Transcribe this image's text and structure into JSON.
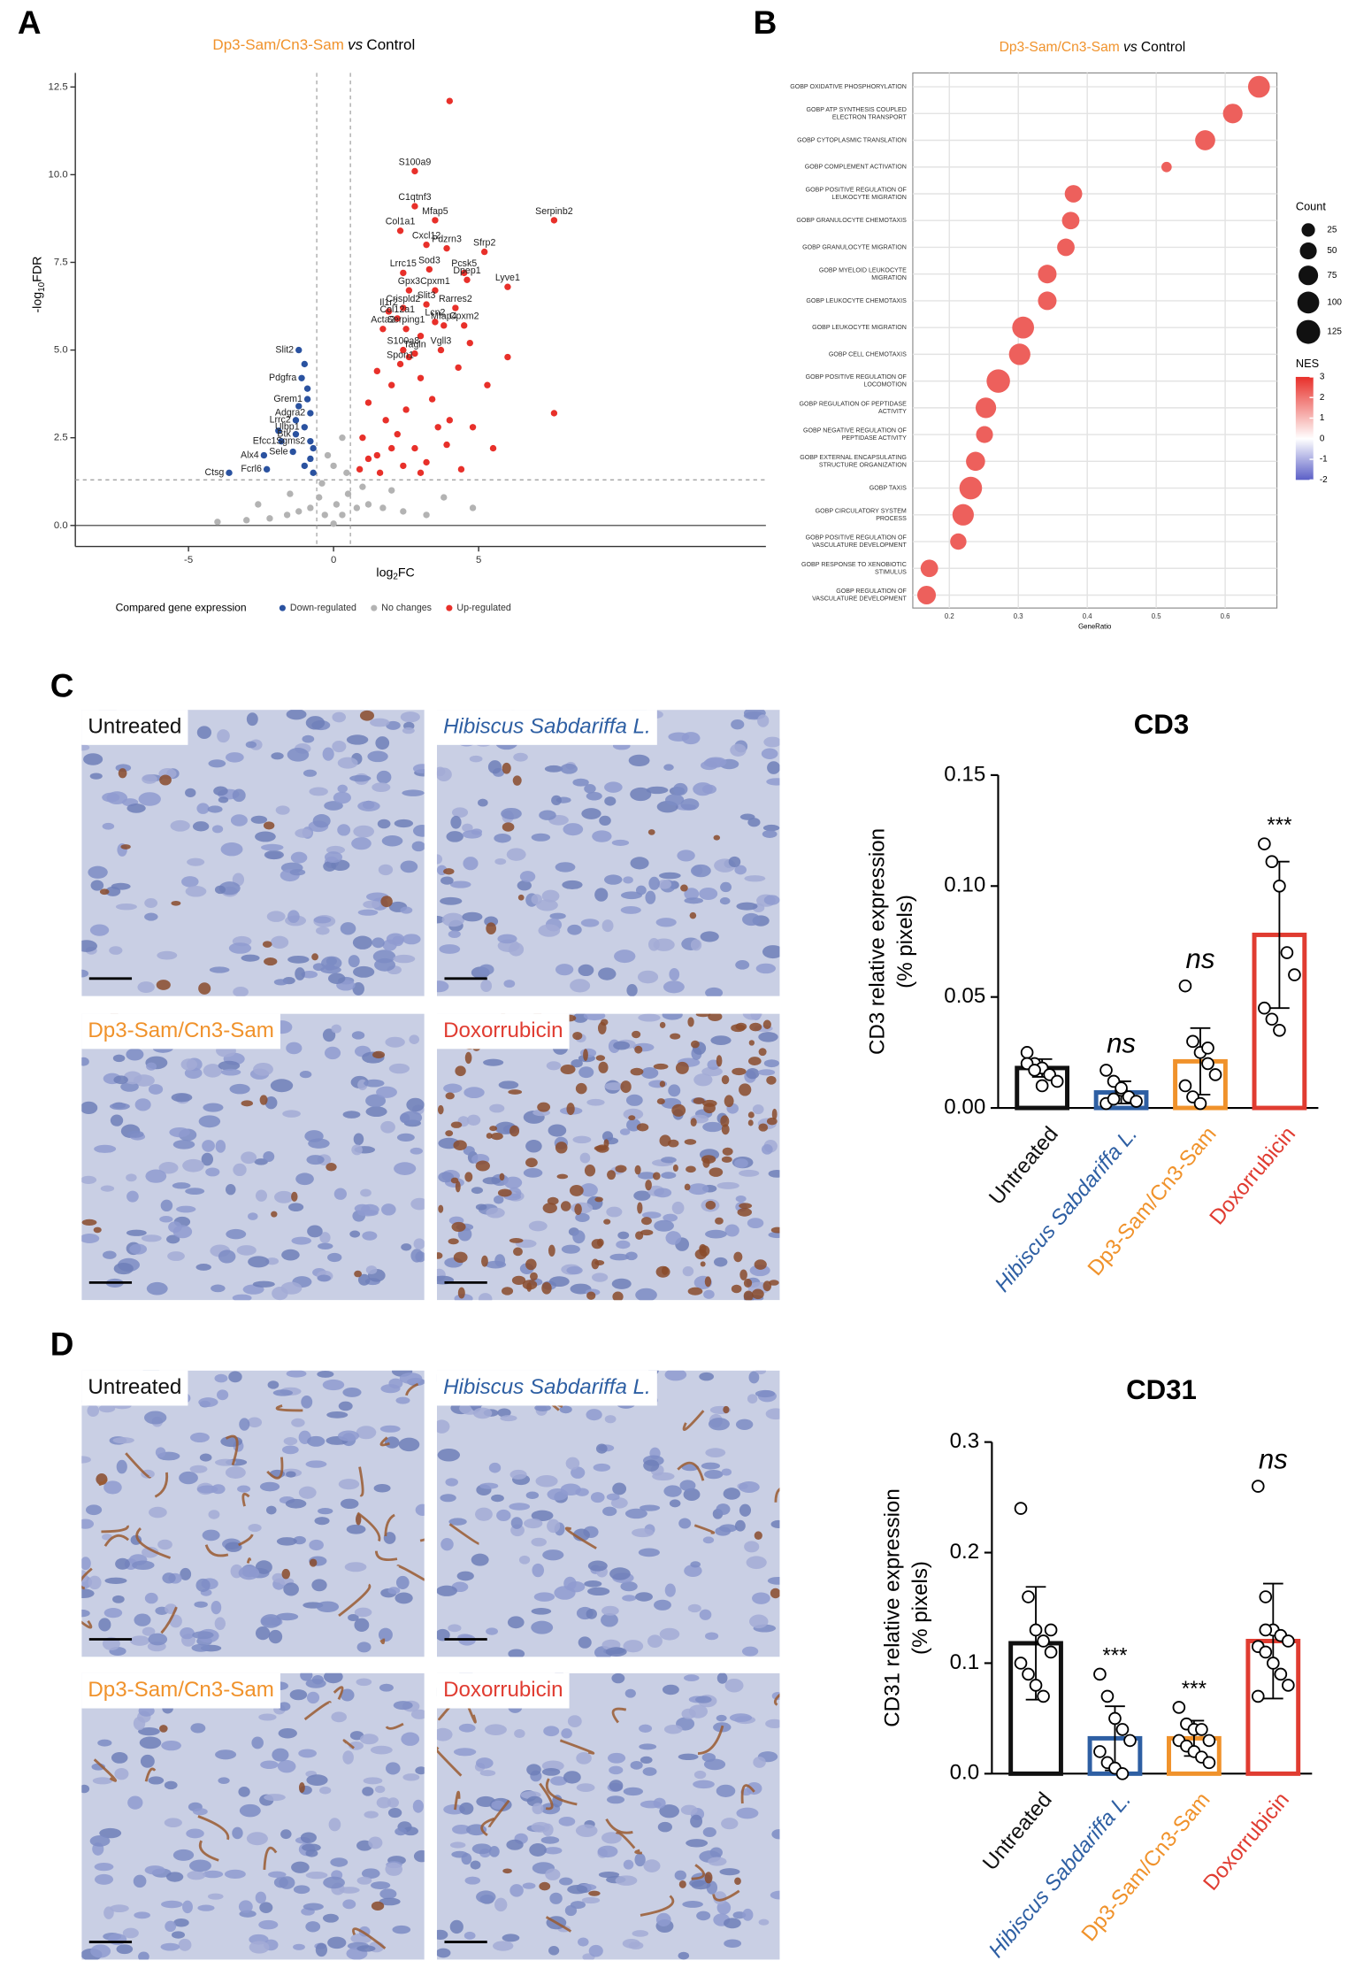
{
  "panel_labels": [
    "A",
    "B",
    "C",
    "D"
  ],
  "chart_data": [
    {
      "type": "scatter",
      "title": [
        "Dp3-Sam/Cn3-Sam",
        "vs",
        "Control"
      ],
      "xlabel": [
        "log",
        "2",
        "FC"
      ],
      "ylabel": [
        "-log",
        "10",
        "FDR"
      ],
      "xlim": [
        -8.9,
        14.9
      ],
      "ylim": [
        -0.6,
        12.9
      ],
      "xticks": [
        -5,
        0,
        5
      ],
      "yticks": [
        {
          "value": 0,
          "label": "0.0"
        },
        2.5,
        {
          "value": 5,
          "label": "5.0"
        },
        7.5,
        {
          "value": 10,
          "label": "10.0"
        },
        12.5
      ],
      "thresholds": {
        "x": [
          -0.58,
          0.58
        ],
        "y": 1.3
      },
      "legend_title": "Compared gene expression",
      "series": [
        {
          "name": "Down-regulated",
          "color": "#2a52a0",
          "x": [
            -1.2,
            -1.1,
            -0.9,
            -0.8,
            -1.3,
            -1.0,
            -1.3,
            -1.8,
            -0.8,
            -1.4,
            -2.4,
            -2.3,
            -3.6,
            -1.0,
            -0.9,
            -0.7,
            -0.8,
            -1.0,
            -0.7,
            -1.2,
            -1.9
          ],
          "y": [
            5.0,
            4.2,
            3.6,
            3.2,
            3.0,
            2.8,
            2.6,
            2.4,
            2.4,
            2.1,
            2.0,
            1.6,
            1.5,
            4.6,
            3.9,
            2.2,
            1.9,
            1.7,
            1.5,
            3.4,
            2.7
          ],
          "labels": [
            "Slit2",
            "Pdgfra",
            "Grem1",
            "Adgra2",
            "Lrrc2",
            "Ulbp1",
            "Btk",
            "Efcc1",
            "Sgms2",
            "Sele",
            "Alx4",
            "Fcrl6",
            "Ctsg",
            null,
            null,
            null,
            null,
            null,
            null,
            null,
            null
          ]
        },
        {
          "name": "No changes",
          "color": "#b3b3b3",
          "x": [
            0,
            -0.3,
            0.3,
            -0.5,
            0.5,
            -0.8,
            0.8,
            -1.2,
            1.2,
            -1.6,
            1.7,
            -2.2,
            2.4,
            -3.0,
            3.2,
            -0.4,
            0.45,
            -0.2,
            0.3,
            0.1,
            2.0,
            3.8,
            -1.5,
            -2.6,
            1.0,
            4.8,
            -4.0,
            0.0
          ],
          "y": [
            0.05,
            0.3,
            0.3,
            0.8,
            0.9,
            0.5,
            0.5,
            0.4,
            0.6,
            0.3,
            0.5,
            0.2,
            0.4,
            0.15,
            0.3,
            1.2,
            1.5,
            2.0,
            2.5,
            0.6,
            1.0,
            0.8,
            0.9,
            0.6,
            1.1,
            0.5,
            0.1,
            1.7
          ]
        },
        {
          "name": "Up-regulated",
          "color": "#e8302a",
          "x": [
            2.8,
            2.8,
            7.6,
            3.5,
            2.3,
            3.2,
            3.9,
            5.2,
            2.4,
            3.3,
            4.5,
            6.0,
            2.6,
            3.5,
            4.6,
            1.9,
            2.4,
            3.2,
            4.2,
            2.2,
            3.5,
            4.5,
            1.7,
            2.5,
            3.8,
            2.4,
            2.8,
            3.7,
            2.3,
            4.0,
            1.5,
            2.0,
            3.0,
            4.3,
            5.3,
            6.0,
            7.6,
            1.2,
            1.8,
            2.5,
            3.4,
            4.0,
            4.8,
            5.5,
            1.0,
            1.5,
            2.2,
            2.8,
            3.2,
            3.9,
            0.9,
            1.6,
            2.4,
            3.0,
            4.4,
            1.2,
            2.0,
            3.6,
            2.6,
            4.7,
            3.0
          ],
          "y": [
            10.1,
            9.1,
            8.7,
            8.7,
            8.4,
            8.0,
            7.9,
            7.8,
            7.2,
            7.3,
            7.2,
            6.8,
            6.7,
            6.7,
            7.0,
            6.1,
            6.2,
            6.3,
            6.2,
            5.9,
            5.8,
            5.7,
            5.6,
            5.6,
            5.7,
            5.0,
            4.9,
            5.0,
            4.6,
            12.1,
            4.4,
            4.0,
            4.2,
            4.5,
            4.0,
            4.8,
            3.2,
            3.5,
            3.0,
            3.3,
            3.6,
            3.0,
            2.8,
            2.2,
            2.5,
            2.0,
            2.6,
            2.2,
            1.8,
            2.3,
            1.6,
            1.5,
            1.7,
            1.5,
            1.6,
            1.9,
            2.2,
            2.8,
            4.8,
            5.2,
            5.4
          ],
          "labels": [
            "S100a9",
            "C1qtnf3",
            "Serpinb2",
            "Mfap5",
            "Col1a1",
            "Cxcl12",
            "Pdzrn3",
            "Sfrp2",
            "Lrrc15",
            "Sod3",
            "Pcsk5",
            "Lyve1",
            "Gpx3",
            "Cpxm1",
            "Dpep1",
            "Il1r2",
            "Crispld2",
            "Slit3",
            "Rarres2",
            "Col12a1",
            "Lcn2",
            "Cpxm2",
            "Acta2",
            "Serping1",
            "Mfap4",
            "S100a8",
            "Tagln",
            "Vgll3",
            "Spon1",
            null,
            null,
            null,
            null,
            null,
            null,
            null,
            null,
            null,
            null,
            null,
            null,
            null,
            null,
            null,
            null,
            null,
            null,
            null,
            null,
            null,
            null,
            null,
            null,
            null,
            null,
            null,
            null,
            null,
            null,
            null,
            null
          ]
        }
      ]
    },
    {
      "type": "dot",
      "title": [
        "Dp3-Sam/Cn3-Sam",
        "vs",
        "Control"
      ],
      "xlabel": "GeneRatio",
      "xlim": [
        0.147,
        0.675
      ],
      "xticks": [
        0.2,
        0.3,
        0.4,
        0.5,
        0.6
      ],
      "grid": true,
      "categories": [
        [
          "GOBP OXIDATIVE PHOSPHORYLATION"
        ],
        [
          "GOBP ATP SYNTHESIS COUPLED",
          "ELECTRON TRANSPORT"
        ],
        [
          "GOBP CYTOPLASMIC TRANSLATION"
        ],
        [
          "GOBP COMPLEMENT ACTIVATION"
        ],
        [
          "GOBP POSITIVE REGULATION OF",
          "LEUKOCYTE MIGRATION"
        ],
        [
          "GOBP GRANULOCYTE CHEMOTAXIS"
        ],
        [
          "GOBP GRANULOCYTE MIGRATION"
        ],
        [
          "GOBP MYELOID LEUKOCYTE",
          "MIGRATION"
        ],
        [
          "GOBP LEUKOCYTE CHEMOTAXIS"
        ],
        [
          "GOBP LEUKOCYTE MIGRATION"
        ],
        [
          "GOBP CELL CHEMOTAXIS"
        ],
        [
          "GOBP POSITIVE REGULATION OF",
          "LOCOMOTION"
        ],
        [
          "GOBP REGULATION OF PEPTIDASE",
          "ACTIVITY"
        ],
        [
          "GOBP NEGATIVE REGULATION OF",
          "PEPTIDASE ACTIVITY"
        ],
        [
          "GOBP EXTERNAL ENCAPSULATING",
          "STRUCTURE ORGANIZATION"
        ],
        [
          "GOBP TAXIS"
        ],
        [
          "GOBP CIRCULATORY SYSTEM",
          "PROCESS"
        ],
        [
          "GOBP POSITIVE REGULATION OF",
          "VASCULATURE DEVELOPMENT"
        ],
        [
          "GOBP RESPONSE TO XENOBIOTIC",
          "STIMULUS"
        ],
        [
          "GOBP REGULATION OF",
          "VASCULATURE DEVELOPMENT"
        ]
      ],
      "gene_ratio": [
        0.649,
        0.611,
        0.571,
        0.515,
        0.38,
        0.376,
        0.369,
        0.342,
        0.342,
        0.307,
        0.302,
        0.271,
        0.253,
        0.251,
        0.238,
        0.231,
        0.22,
        0.213,
        0.171,
        0.167
      ],
      "count": [
        100,
        75,
        80,
        10,
        55,
        55,
        55,
        65,
        65,
        100,
        95,
        120,
        85,
        50,
        70,
        110,
        95,
        45,
        55,
        65
      ],
      "nes": [
        2.3,
        2.3,
        2.3,
        2.3,
        2.3,
        2.3,
        2.3,
        2.3,
        2.3,
        2.3,
        2.3,
        2.3,
        2.3,
        2.3,
        2.3,
        2.3,
        2.3,
        2.3,
        2.3,
        2.3
      ],
      "size_legend_title": "Count",
      "size_legend": [
        25,
        50,
        75,
        100,
        125
      ],
      "color_legend_title": "NES",
      "colorbar_lim": [
        -2,
        3
      ],
      "colorbar_ticks": [
        -2,
        -1,
        0,
        1,
        2,
        3
      ],
      "colorbar_colors": [
        "#5b5fc7",
        "#ffffff",
        "#e8302a"
      ]
    },
    {
      "type": "bar",
      "title": "CD3",
      "ylabel": [
        "CD3 relative expression",
        "(% pixels)"
      ],
      "ylim": [
        0,
        0.15
      ],
      "yticks": [
        {
          "value": 0,
          "label": "0.00"
        },
        0.05,
        {
          "value": 0.1,
          "label": "0.10"
        },
        0.15
      ],
      "categories": [
        "Untreated",
        "Hibiscus Sabdariffa L.",
        "Dp3-Sam/Cn3-Sam",
        "Doxorrubicin"
      ],
      "category_italic": [
        false,
        true,
        false,
        false
      ],
      "colors": [
        "#111111",
        "#2e5fa3",
        "#f0922b",
        "#e03c31"
      ],
      "values": [
        0.018,
        0.007,
        0.021,
        0.078
      ],
      "errors": [
        0.004,
        0.005,
        0.015,
        0.033
      ],
      "points": [
        [
          0.025,
          0.02,
          0.018,
          0.015,
          0.012,
          0.02,
          0.017,
          0.01
        ],
        [
          0.017,
          0.012,
          0.008,
          0.005,
          0.003,
          0.002,
          0.004,
          0.009
        ],
        [
          0.055,
          0.03,
          0.025,
          0.02,
          0.015,
          0.01,
          0.005,
          0.002,
          0.027
        ],
        [
          0.119,
          0.111,
          0.1,
          0.07,
          0.06,
          0.045,
          0.04,
          0.035
        ]
      ],
      "annotations": [
        null,
        "ns",
        "ns",
        "***"
      ]
    },
    {
      "type": "bar",
      "title": "CD31",
      "ylabel": [
        "CD31 relative expression",
        "(% pixels)"
      ],
      "ylim": [
        0,
        0.3
      ],
      "yticks": [
        {
          "value": 0,
          "label": "0.0"
        },
        0.1,
        0.2,
        0.3
      ],
      "categories": [
        "Untreated",
        "Hibiscus Sabdariffa L.",
        "Dp3-Sam/Cn3-Sam",
        "Doxorrubicin"
      ],
      "category_italic": [
        false,
        true,
        false,
        false
      ],
      "colors": [
        "#111111",
        "#2e5fa3",
        "#f0922b",
        "#e03c31"
      ],
      "values": [
        0.118,
        0.032,
        0.032,
        0.12
      ],
      "errors": [
        0.051,
        0.029,
        0.016,
        0.052
      ],
      "points": [
        [
          0.24,
          0.16,
          0.13,
          0.12,
          0.11,
          0.1,
          0.09,
          0.08,
          0.07,
          0.13
        ],
        [
          0.09,
          0.07,
          0.05,
          0.04,
          0.03,
          0.02,
          0.01,
          0.005,
          0.0
        ],
        [
          0.06,
          0.045,
          0.04,
          0.04,
          0.03,
          0.03,
          0.025,
          0.02,
          0.015,
          0.01
        ],
        [
          0.26,
          0.16,
          0.13,
          0.125,
          0.12,
          0.115,
          0.11,
          0.1,
          0.09,
          0.08,
          0.07,
          0.13
        ]
      ],
      "annotations": [
        null,
        "***",
        "***",
        "ns"
      ]
    }
  ]
}
